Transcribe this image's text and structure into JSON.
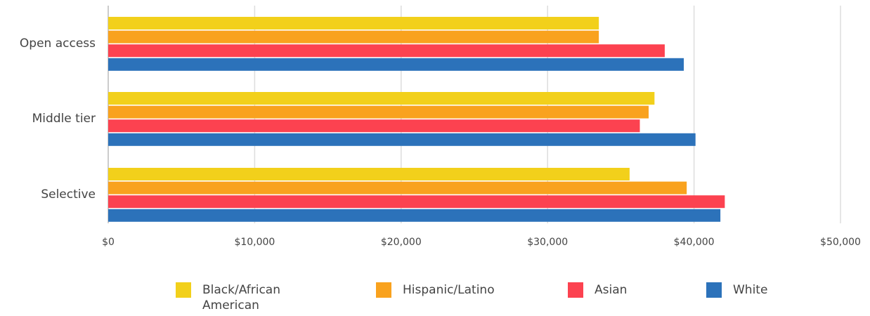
{
  "chart_data": {
    "type": "barh",
    "categories": [
      "Open access",
      "Middle tier",
      "Selective"
    ],
    "series": [
      {
        "name": "Black/African American",
        "color": "#f2d01b",
        "values": [
          33500,
          37300,
          35600
        ]
      },
      {
        "name": "Hispanic/Latino",
        "color": "#f9a21e",
        "values": [
          33500,
          36900,
          39500
        ]
      },
      {
        "name": "Asian",
        "color": "#fc4250",
        "values": [
          38000,
          36300,
          42100
        ]
      },
      {
        "name": "White",
        "color": "#2c72ba",
        "values": [
          39300,
          40100,
          41800
        ]
      }
    ],
    "xlim": [
      0,
      50000
    ],
    "xticks": [
      {
        "value": 0,
        "label": "$0"
      },
      {
        "value": 10000,
        "label": "$10,000"
      },
      {
        "value": 20000,
        "label": "$20,000"
      },
      {
        "value": 30000,
        "label": "$30,000"
      },
      {
        "value": 40000,
        "label": "$40,000"
      },
      {
        "value": 50000,
        "label": "$50,000"
      }
    ],
    "grid": true,
    "legend": "bottom"
  }
}
